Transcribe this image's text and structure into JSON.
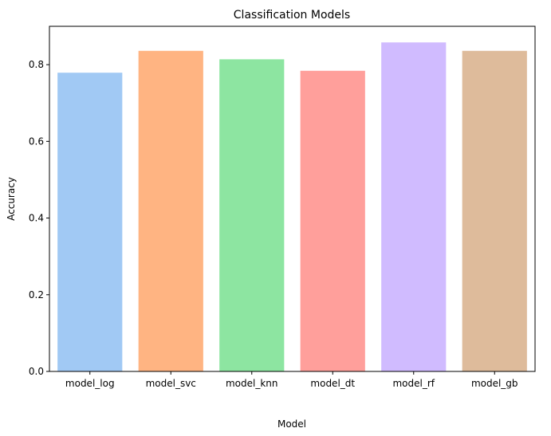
{
  "chart_data": {
    "type": "bar",
    "title": "Classification Models",
    "xlabel": "Model",
    "ylabel": "Accuracy",
    "categories": [
      "model_log",
      "model_svc",
      "model_knn",
      "model_dt",
      "model_rf",
      "model_gb"
    ],
    "values": [
      0.779,
      0.836,
      0.814,
      0.784,
      0.858,
      0.836
    ],
    "colors": [
      "#a1c9f4",
      "#ffb482",
      "#8de5a1",
      "#ff9f9b",
      "#d0bbff",
      "#debb9b"
    ],
    "ylim": [
      0,
      0.9
    ],
    "yticks": [
      0.0,
      0.2,
      0.4,
      0.6,
      0.8
    ],
    "ytick_labels": [
      "0.0",
      "0.2",
      "0.4",
      "0.6",
      "0.8"
    ],
    "grid": false,
    "legend": "none"
  }
}
